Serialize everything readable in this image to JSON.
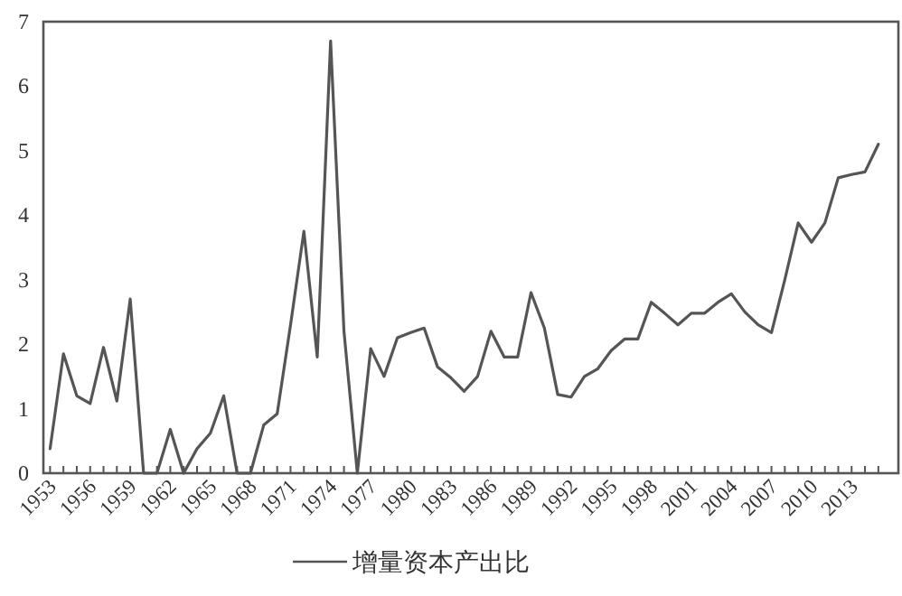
{
  "chart_data": {
    "type": "line",
    "categories": [
      "1953",
      null,
      null,
      "1956",
      null,
      null,
      "1959",
      null,
      null,
      "1962",
      null,
      null,
      "1965",
      null,
      null,
      "1968",
      null,
      null,
      "1971",
      null,
      null,
      "1974",
      null,
      null,
      "1977",
      null,
      null,
      "1980",
      null,
      null,
      "1983",
      null,
      null,
      "1986",
      null,
      null,
      "1989",
      null,
      null,
      "1992",
      null,
      null,
      "1995",
      null,
      null,
      "1998",
      null,
      null,
      "2001",
      null,
      null,
      "2004",
      null,
      null,
      "2007",
      null,
      null,
      "2010",
      null,
      null,
      "2013",
      null,
      null
    ],
    "series": [
      {
        "name": "增量资本产出比",
        "color": "#555555",
        "values": [
          0.38,
          1.85,
          1.2,
          1.08,
          1.95,
          1.12,
          2.7,
          0,
          0,
          0.68,
          0,
          0.38,
          0.62,
          1.2,
          0,
          0,
          0.75,
          0.92,
          2.3,
          3.75,
          1.8,
          6.7,
          2.2,
          0,
          1.93,
          1.5,
          2.1,
          2.18,
          2.25,
          1.65,
          1.48,
          1.27,
          1.5,
          2.2,
          1.8,
          1.8,
          2.8,
          2.25,
          1.22,
          1.18,
          1.5,
          1.62,
          1.9,
          2.08,
          2.08,
          2.65,
          2.48,
          2.3,
          2.48,
          2.48,
          2.65,
          2.78,
          2.5,
          2.3,
          2.18,
          3.0,
          3.88,
          3.58,
          3.88,
          4.58,
          4.63,
          4.67,
          5.1
        ]
      }
    ],
    "ylim": [
      0,
      7
    ],
    "yticks": [
      0,
      1,
      2,
      3,
      4,
      5,
      6,
      7
    ],
    "legend": "bottom",
    "grid": false,
    "marker": "none",
    "line_style": "solid"
  }
}
